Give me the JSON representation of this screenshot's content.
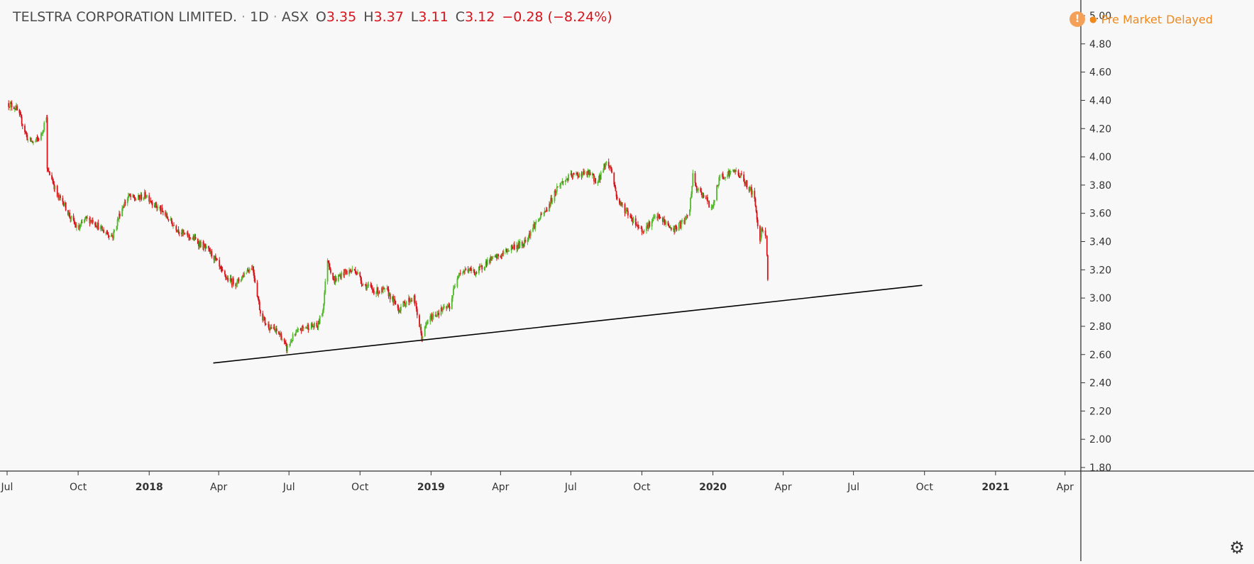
{
  "legend": {
    "name": "TELSTRA CORPORATION LIMITED.",
    "interval": "1D",
    "exchange": "ASX",
    "open_label": "O",
    "open": "3.35",
    "high_label": "H",
    "high": "3.37",
    "low_label": "L",
    "low": "3.11",
    "close_label": "C",
    "close": "3.12",
    "change": "−0.28 (−8.24%)"
  },
  "status": {
    "icon": "warning-icon",
    "market": "Pre Market",
    "delay": "Delayed"
  },
  "settings": {
    "icon": "gear-icon"
  },
  "colors": {
    "up": "#53b92c",
    "down": "#d8141b",
    "trendline": "#000000",
    "axis": "#333333",
    "status": "#f0881a"
  },
  "chart_data": {
    "type": "candlestick",
    "y_axis": {
      "position": "right",
      "min": 1.8,
      "max": 5.0,
      "ticks": [
        "5.00",
        "4.80",
        "4.60",
        "4.40",
        "4.20",
        "4.00",
        "3.80",
        "3.60",
        "3.40",
        "3.20",
        "3.00",
        "2.80",
        "2.60",
        "2.40",
        "2.20",
        "2.00",
        "1.80"
      ]
    },
    "x_axis": {
      "start": "2017-07-01",
      "end": "2021-04-15",
      "ticks": [
        {
          "date": "2017-07-01",
          "label": "Jul",
          "bold": false
        },
        {
          "date": "2017-10-01",
          "label": "Oct",
          "bold": false
        },
        {
          "date": "2018-01-01",
          "label": "2018",
          "bold": true
        },
        {
          "date": "2018-04-01",
          "label": "Apr",
          "bold": false
        },
        {
          "date": "2018-07-01",
          "label": "Jul",
          "bold": false
        },
        {
          "date": "2018-10-01",
          "label": "Oct",
          "bold": false
        },
        {
          "date": "2019-01-01",
          "label": "2019",
          "bold": true
        },
        {
          "date": "2019-04-01",
          "label": "Apr",
          "bold": false
        },
        {
          "date": "2019-07-01",
          "label": "Jul",
          "bold": false
        },
        {
          "date": "2019-10-01",
          "label": "Oct",
          "bold": false
        },
        {
          "date": "2020-01-01",
          "label": "2020",
          "bold": true
        },
        {
          "date": "2020-04-01",
          "label": "Apr",
          "bold": false
        },
        {
          "date": "2020-07-01",
          "label": "Jul",
          "bold": false
        },
        {
          "date": "2020-10-01",
          "label": "Oct",
          "bold": false
        },
        {
          "date": "2021-01-01",
          "label": "2021",
          "bold": true
        },
        {
          "date": "2021-04-01",
          "label": "Apr",
          "bold": false
        }
      ]
    },
    "price_path": [
      [
        "2017-07-01",
        4.38
      ],
      [
        "2017-07-12",
        4.35
      ],
      [
        "2017-07-20",
        4.25
      ],
      [
        "2017-07-28",
        4.12
      ],
      [
        "2017-08-05",
        4.1
      ],
      [
        "2017-08-14",
        4.15
      ],
      [
        "2017-08-21",
        4.3
      ],
      [
        "2017-08-22",
        3.9
      ],
      [
        "2017-08-28",
        3.85
      ],
      [
        "2017-09-04",
        3.72
      ],
      [
        "2017-09-12",
        3.68
      ],
      [
        "2017-09-20",
        3.58
      ],
      [
        "2017-10-01",
        3.48
      ],
      [
        "2017-10-10",
        3.56
      ],
      [
        "2017-10-20",
        3.55
      ],
      [
        "2017-11-01",
        3.48
      ],
      [
        "2017-11-15",
        3.44
      ],
      [
        "2017-11-25",
        3.62
      ],
      [
        "2017-12-05",
        3.72
      ],
      [
        "2017-12-15",
        3.7
      ],
      [
        "2017-12-28",
        3.73
      ],
      [
        "2018-01-10",
        3.65
      ],
      [
        "2018-01-20",
        3.6
      ],
      [
        "2018-02-01",
        3.52
      ],
      [
        "2018-02-15",
        3.45
      ],
      [
        "2018-02-28",
        3.42
      ],
      [
        "2018-03-15",
        3.35
      ],
      [
        "2018-03-25",
        3.3
      ],
      [
        "2018-04-05",
        3.18
      ],
      [
        "2018-04-15",
        3.12
      ],
      [
        "2018-04-25",
        3.11
      ],
      [
        "2018-05-08",
        3.2
      ],
      [
        "2018-05-15",
        3.22
      ],
      [
        "2018-05-25",
        2.9
      ],
      [
        "2018-06-01",
        2.82
      ],
      [
        "2018-06-10",
        2.78
      ],
      [
        "2018-06-20",
        2.74
      ],
      [
        "2018-06-28",
        2.64
      ],
      [
        "2018-07-06",
        2.72
      ],
      [
        "2018-07-16",
        2.78
      ],
      [
        "2018-07-26",
        2.8
      ],
      [
        "2018-08-07",
        2.8
      ],
      [
        "2018-08-14",
        2.92
      ],
      [
        "2018-08-20",
        3.28
      ],
      [
        "2018-08-28",
        3.12
      ],
      [
        "2018-09-10",
        3.18
      ],
      [
        "2018-09-25",
        3.2
      ],
      [
        "2018-10-05",
        3.1
      ],
      [
        "2018-10-20",
        3.05
      ],
      [
        "2018-11-05",
        3.05
      ],
      [
        "2018-11-20",
        2.92
      ],
      [
        "2018-12-01",
        2.98
      ],
      [
        "2018-12-10",
        3.0
      ],
      [
        "2018-12-20",
        2.72
      ],
      [
        "2018-12-28",
        2.84
      ],
      [
        "2019-01-10",
        2.9
      ],
      [
        "2019-01-25",
        2.94
      ],
      [
        "2019-02-05",
        3.18
      ],
      [
        "2019-02-18",
        3.2
      ],
      [
        "2019-03-01",
        3.18
      ],
      [
        "2019-03-15",
        3.26
      ],
      [
        "2019-04-01",
        3.3
      ],
      [
        "2019-04-15",
        3.36
      ],
      [
        "2019-04-30",
        3.38
      ],
      [
        "2019-05-15",
        3.52
      ],
      [
        "2019-05-30",
        3.62
      ],
      [
        "2019-06-15",
        3.8
      ],
      [
        "2019-06-30",
        3.86
      ],
      [
        "2019-07-15",
        3.88
      ],
      [
        "2019-07-25",
        3.88
      ],
      [
        "2019-08-05",
        3.82
      ],
      [
        "2019-08-15",
        3.96
      ],
      [
        "2019-08-22",
        3.92
      ],
      [
        "2019-08-30",
        3.7
      ],
      [
        "2019-09-10",
        3.62
      ],
      [
        "2019-09-20",
        3.55
      ],
      [
        "2019-10-01",
        3.48
      ],
      [
        "2019-10-10",
        3.52
      ],
      [
        "2019-10-20",
        3.58
      ],
      [
        "2019-10-30",
        3.54
      ],
      [
        "2019-11-10",
        3.48
      ],
      [
        "2019-11-20",
        3.52
      ],
      [
        "2019-12-01",
        3.58
      ],
      [
        "2019-12-06",
        3.86
      ],
      [
        "2019-12-12",
        3.76
      ],
      [
        "2019-12-22",
        3.72
      ],
      [
        "2019-12-30",
        3.62
      ],
      [
        "2020-01-10",
        3.86
      ],
      [
        "2020-01-20",
        3.88
      ],
      [
        "2020-01-30",
        3.9
      ],
      [
        "2020-02-07",
        3.86
      ],
      [
        "2020-02-14",
        3.8
      ],
      [
        "2020-02-21",
        3.75
      ],
      [
        "2020-02-25",
        3.66
      ],
      [
        "2020-03-01",
        3.4
      ],
      [
        "2020-03-05",
        3.5
      ],
      [
        "2020-03-10",
        3.45
      ],
      [
        "2020-03-12",
        3.12
      ]
    ],
    "trendline": {
      "from": [
        "2018-03-25",
        2.54
      ],
      "to": [
        "2020-09-28",
        3.09
      ]
    }
  }
}
